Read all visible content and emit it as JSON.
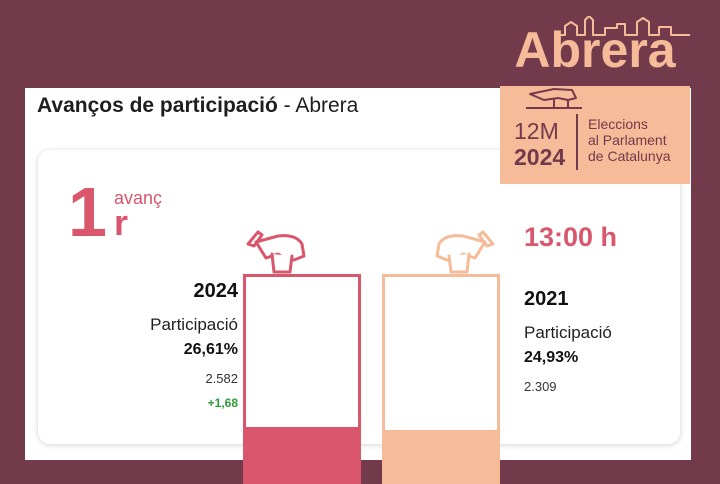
{
  "header": {
    "title_bold": "Avanços de participació",
    "title_sep": " - ",
    "title_place": "Abrera"
  },
  "advance": {
    "number": "1",
    "word": "avanç",
    "ordinal": "r"
  },
  "time": "13:00 h",
  "current": {
    "year": "2024",
    "label": "Participació",
    "percent": "26,61%",
    "votes": "2.582",
    "difference": "+1,68",
    "turnout_fraction": 0.2661
  },
  "previous": {
    "year": "2021",
    "label": "Participació",
    "percent": "24,93%",
    "votes": "2.309",
    "turnout_fraction": 0.2493
  },
  "badge": {
    "city": "Abrera",
    "date_short": "12M",
    "year": "2024",
    "line1": "Eleccions",
    "line2": "al Parlament",
    "line3": "de Catalunya"
  },
  "colors": {
    "background": "#733a4b",
    "accent_current": "#d9566d",
    "accent_previous": "#f6bb98",
    "positive": "#2e9b3a"
  },
  "icons": {
    "ballot_current": "ballot-hand-icon",
    "ballot_previous": "ballot-hand-icon",
    "skyline": "city-skyline-icon"
  }
}
